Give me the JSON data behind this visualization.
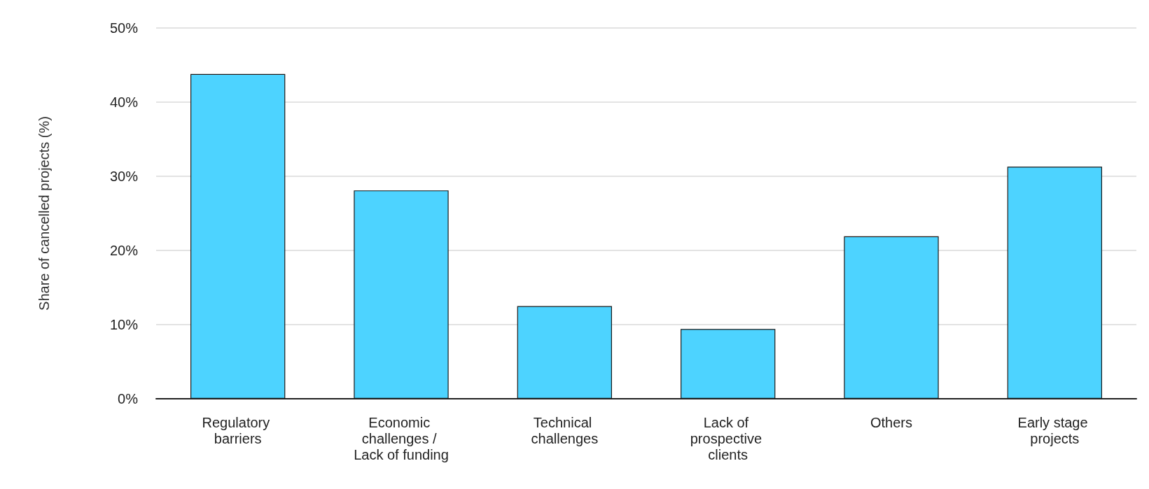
{
  "chart_data": {
    "type": "bar",
    "ylabel": "Share of cancelled projects (%)",
    "categories": [
      "Regulatory barriers",
      "Economic challenges / Lack of funding",
      "Technical challenges",
      "Lack of prospective clients",
      "Others",
      "Early stage projects"
    ],
    "values": [
      43.8,
      28.1,
      12.5,
      9.4,
      21.9,
      31.3
    ],
    "color": "#4dd3ff",
    "ylim": [
      0,
      50
    ],
    "yticks": [
      {
        "value": 0,
        "label": "0%"
      },
      {
        "value": 10,
        "label": "10%"
      },
      {
        "value": 20,
        "label": "20%"
      },
      {
        "value": 30,
        "label": "30%"
      },
      {
        "value": 40,
        "label": "40%"
      },
      {
        "value": 50,
        "label": "50%"
      }
    ],
    "grid": "y"
  }
}
